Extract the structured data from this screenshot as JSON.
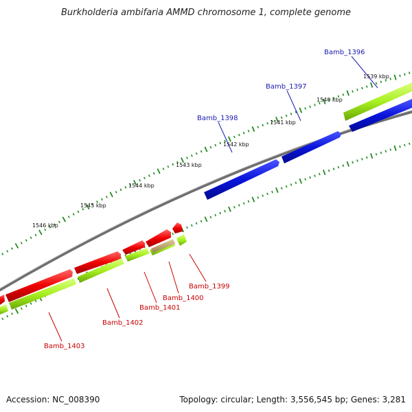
{
  "title": "Burkholderia ambifaria AMMD chromosome 1, complete genome",
  "footer": {
    "accession": "Accession: NC_008390",
    "stats": "Topology: circular; Length: 3,556,545 bp; Genes: 3,281"
  },
  "colors": {
    "forward_gene": "#0a14dc",
    "reverse_gene": "#f00000",
    "cds": "#a8f020",
    "pseudo": "#c8b070",
    "backbone": "#7c7c7c",
    "ticks": "#1f8a1f",
    "forward_label": "#1a1ab0",
    "reverse_label": "#c80000"
  },
  "tick_labels": [
    {
      "text": "1539 kbp"
    },
    {
      "text": "1540 kbp"
    },
    {
      "text": "1541 kbp"
    },
    {
      "text": "1542 kbp"
    },
    {
      "text": "1543 kbp"
    },
    {
      "text": "1544 kbp"
    },
    {
      "text": "1545 kbp"
    },
    {
      "text": "1546 kbp"
    }
  ],
  "forward_genes": [
    {
      "name": "Bamb_1396"
    },
    {
      "name": "Bamb_1397"
    },
    {
      "name": "Bamb_1398"
    }
  ],
  "reverse_genes": [
    {
      "name": "Bamb_1399"
    },
    {
      "name": "Bamb_1400"
    },
    {
      "name": "Bamb_1401"
    },
    {
      "name": "Bamb_1402"
    },
    {
      "name": "Bamb_1403"
    }
  ]
}
